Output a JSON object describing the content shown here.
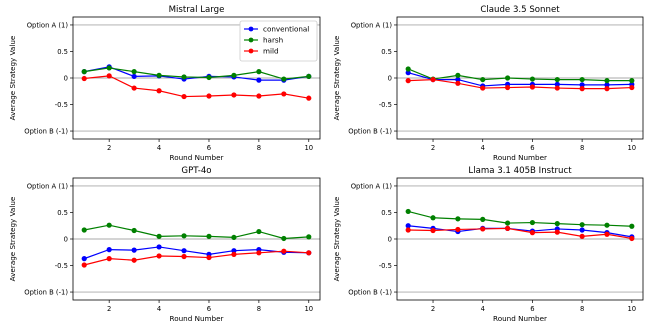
{
  "chart_data": [
    {
      "type": "line",
      "title": "Mistral Large",
      "xlabel": "Round Number",
      "ylabel": "Average Strategy Value",
      "x": [
        1,
        2,
        3,
        4,
        5,
        6,
        7,
        8,
        9,
        10
      ],
      "xticks": [
        "2",
        "4",
        "6",
        "8",
        "10"
      ],
      "yticks": [
        "Option A (1)",
        "0.5",
        "0",
        "-0.5",
        "Option B (-1)"
      ],
      "ylim": [
        -1,
        1
      ],
      "grid": "horizontal lines at 1, 0, -1",
      "legend": {
        "placement": "top-right",
        "entries": [
          "conventional",
          "harsh",
          "mild"
        ]
      },
      "series": [
        {
          "name": "conventional",
          "color": "#0000ff",
          "values": [
            0.12,
            0.21,
            0.03,
            0.04,
            -0.02,
            0.03,
            0.02,
            -0.04,
            -0.04,
            0.03
          ]
        },
        {
          "name": "harsh",
          "color": "#008000",
          "values": [
            0.12,
            0.19,
            0.12,
            0.05,
            0.02,
            0.01,
            0.05,
            0.12,
            -0.02,
            0.03
          ]
        },
        {
          "name": "mild",
          "color": "#ff0000",
          "values": [
            -0.01,
            0.04,
            -0.19,
            -0.24,
            -0.35,
            -0.34,
            -0.32,
            -0.34,
            -0.3,
            -0.38
          ]
        }
      ]
    },
    {
      "type": "line",
      "title": "Claude 3.5 Sonnet",
      "xlabel": "Round Number",
      "ylabel": "Average Strategy Value",
      "x": [
        1,
        2,
        3,
        4,
        5,
        6,
        7,
        8,
        9,
        10
      ],
      "xticks": [
        "2",
        "4",
        "6",
        "8",
        "10"
      ],
      "yticks": [
        "Option A (1)",
        "0.5",
        "0",
        "-0.5",
        "Option B (-1)"
      ],
      "ylim": [
        -1,
        1
      ],
      "grid": "horizontal lines at 1, 0, -1",
      "series": [
        {
          "name": "conventional",
          "color": "#0000ff",
          "values": [
            0.1,
            -0.03,
            -0.03,
            -0.15,
            -0.12,
            -0.12,
            -0.12,
            -0.13,
            -0.13,
            -0.12
          ]
        },
        {
          "name": "harsh",
          "color": "#008000",
          "values": [
            0.17,
            -0.02,
            0.05,
            -0.03,
            0.0,
            -0.02,
            -0.03,
            -0.03,
            -0.05,
            -0.05
          ]
        },
        {
          "name": "mild",
          "color": "#ff0000",
          "values": [
            -0.05,
            -0.03,
            -0.1,
            -0.19,
            -0.18,
            -0.17,
            -0.19,
            -0.2,
            -0.2,
            -0.18
          ]
        }
      ]
    },
    {
      "type": "line",
      "title": "GPT-4o",
      "xlabel": "Round Number",
      "ylabel": "Average Strategy Value",
      "x": [
        1,
        2,
        3,
        4,
        5,
        6,
        7,
        8,
        9,
        10
      ],
      "xticks": [
        "2",
        "4",
        "6",
        "8",
        "10"
      ],
      "yticks": [
        "Option A (1)",
        "0.5",
        "0",
        "-0.5",
        "Option B (-1)"
      ],
      "ylim": [
        -1,
        1
      ],
      "grid": "horizontal lines at 1, 0, -1",
      "series": [
        {
          "name": "conventional",
          "color": "#0000ff",
          "values": [
            -0.37,
            -0.2,
            -0.21,
            -0.15,
            -0.22,
            -0.29,
            -0.22,
            -0.2,
            -0.25,
            -0.26
          ]
        },
        {
          "name": "harsh",
          "color": "#008000",
          "values": [
            0.17,
            0.26,
            0.16,
            0.05,
            0.06,
            0.05,
            0.03,
            0.14,
            0.01,
            0.04
          ]
        },
        {
          "name": "mild",
          "color": "#ff0000",
          "values": [
            -0.49,
            -0.37,
            -0.4,
            -0.32,
            -0.33,
            -0.35,
            -0.29,
            -0.26,
            -0.23,
            -0.26
          ]
        }
      ]
    },
    {
      "type": "line",
      "title": "Llama 3.1 405B Instruct",
      "xlabel": "Round Number",
      "ylabel": "Average Strategy Value",
      "x": [
        1,
        2,
        3,
        4,
        5,
        6,
        7,
        8,
        9,
        10
      ],
      "xticks": [
        "2",
        "4",
        "6",
        "8",
        "10"
      ],
      "yticks": [
        "Option A (1)",
        "0.5",
        "0",
        "-0.5",
        "Option B (-1)"
      ],
      "ylim": [
        -1,
        1
      ],
      "grid": "horizontal lines at 1, 0, -1",
      "series": [
        {
          "name": "conventional",
          "color": "#0000ff",
          "values": [
            0.25,
            0.2,
            0.14,
            0.2,
            0.2,
            0.15,
            0.19,
            0.17,
            0.12,
            0.04
          ]
        },
        {
          "name": "harsh",
          "color": "#008000",
          "values": [
            0.52,
            0.4,
            0.38,
            0.37,
            0.3,
            0.31,
            0.29,
            0.27,
            0.26,
            0.24
          ]
        },
        {
          "name": "mild",
          "color": "#ff0000",
          "values": [
            0.17,
            0.16,
            0.18,
            0.19,
            0.2,
            0.12,
            0.13,
            0.05,
            0.09,
            0.01
          ]
        }
      ]
    }
  ]
}
